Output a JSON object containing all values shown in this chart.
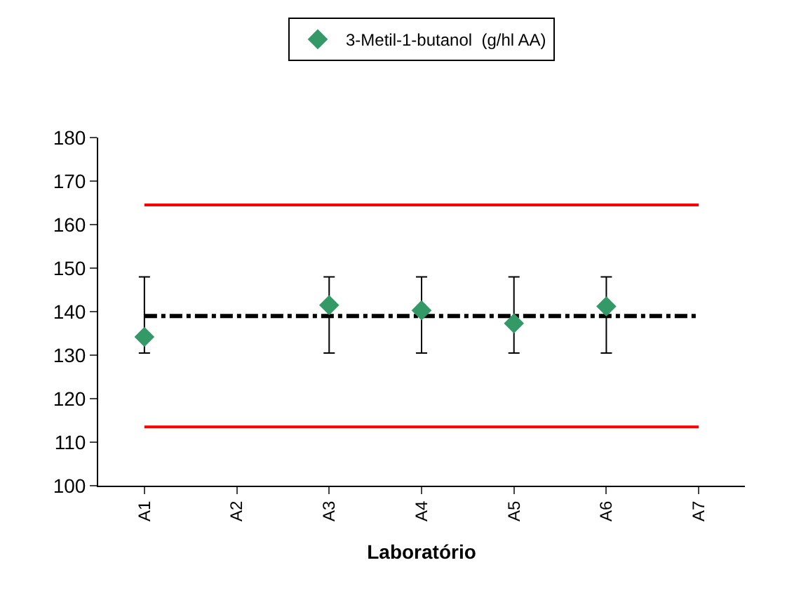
{
  "chart_data": {
    "type": "scatter",
    "xlabel": "Laboratório",
    "categories": [
      "A1",
      "A2",
      "A3",
      "A4",
      "A5",
      "A6",
      "A7"
    ],
    "series": [
      {
        "type": "line",
        "color": "#ff0000",
        "line_style": "solid",
        "marker": "none",
        "values": [
          164.5,
          164.5,
          164.5,
          164.5,
          164.5,
          164.5,
          164.5
        ]
      },
      {
        "type": "line",
        "color": "#ff0000",
        "line_style": "solid",
        "marker": "none",
        "values": [
          113.5,
          113.5,
          113.5,
          113.5,
          113.5,
          113.5,
          113.5
        ]
      },
      {
        "type": "line",
        "color": "#000000",
        "line_style": "dashed",
        "marker": "none",
        "values": [
          139,
          139,
          139,
          139,
          139,
          139,
          139
        ]
      },
      {
        "name": "3-Metil-1-butanol  (g/hl AA)",
        "color": "#339966",
        "marker": "diamond",
        "values": [
          134.2,
          null,
          141.5,
          140.3,
          137.3,
          141.2,
          null
        ],
        "errors": [
          [
            130.5,
            148
          ],
          null,
          [
            130.5,
            148
          ],
          [
            130.5,
            148
          ],
          [
            130.5,
            148
          ],
          [
            130.5,
            148
          ],
          null
        ]
      }
    ],
    "ylim": [
      100,
      180
    ],
    "yticks": [
      100,
      110,
      120,
      130,
      140,
      150,
      160,
      170,
      180
    ],
    "grid": false,
    "legend": "top"
  }
}
